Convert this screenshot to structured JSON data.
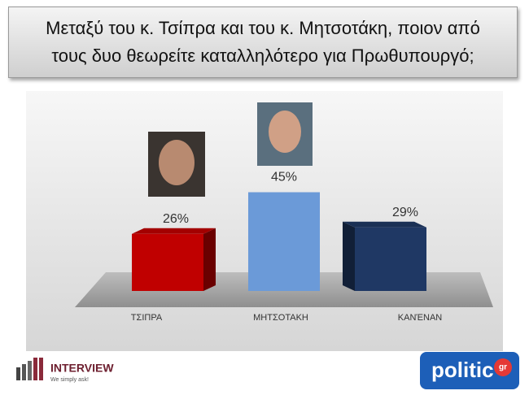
{
  "chart_data": {
    "type": "bar",
    "title": "Μεταξύ του κ. Τσίπρα και του κ. Μητσοτάκη, ποιον από τους δυο θεωρείτε καταλληλότερο για Πρωθυπουργό;",
    "categories": [
      "ΤΣΙΠΡΑ",
      "ΜΗΤΣΟΤΑΚΗ",
      "ΚΑΝΈΝΑΝ"
    ],
    "values": [
      26,
      45,
      29
    ],
    "value_labels": [
      "26%",
      "45%",
      "29%"
    ],
    "colors": [
      "#c00000",
      "#6b9ad8",
      "#1f3864"
    ]
  },
  "logos": {
    "left": {
      "name": "INTERVIEW",
      "tagline": "We simply ask!"
    },
    "right": {
      "name": "politic",
      "suffix": "gr"
    }
  }
}
